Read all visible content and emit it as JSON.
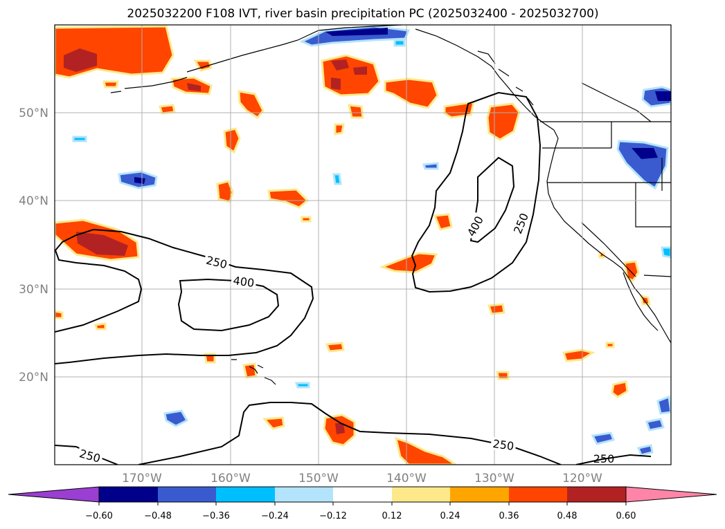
{
  "title": "2025032200 F108 IVT, river basin precipitation PC (2025032400 - 2025032700)",
  "lat_labels": [
    "50°N",
    "40°N",
    "30°N",
    "20°N"
  ],
  "lon_labels": [
    "170°W",
    "160°W",
    "150°W",
    "140°W",
    "130°W",
    "120°W"
  ],
  "contour_labels": [
    "250",
    "400",
    "400",
    "250",
    "250",
    "250"
  ],
  "colorbar": {
    "ticks": [
      "−0.60",
      "−0.48",
      "−0.36",
      "−0.24",
      "−0.12",
      "0.12",
      "0.24",
      "0.36",
      "0.48",
      "0.60"
    ],
    "colors": [
      "#9a3fd1",
      "#00008b",
      "#3a5bd0",
      "#00bfff",
      "#b3e4fb",
      "#ffffff",
      "#fde98a",
      "#ffa500",
      "#ff4500",
      "#b22222",
      "#ff85a8"
    ]
  },
  "colors": {
    "strong_positive": "#b22222",
    "positive": "#ff4500",
    "weak_positive": "#ffa500",
    "edge_positive": "#fde98a",
    "strong_negative": "#00008b",
    "negative": "#3a5bd0",
    "weak_negative": "#00bfff",
    "edge_negative": "#b3e4fb",
    "contour": "#000000",
    "gridline": "#b0b0b0"
  }
}
